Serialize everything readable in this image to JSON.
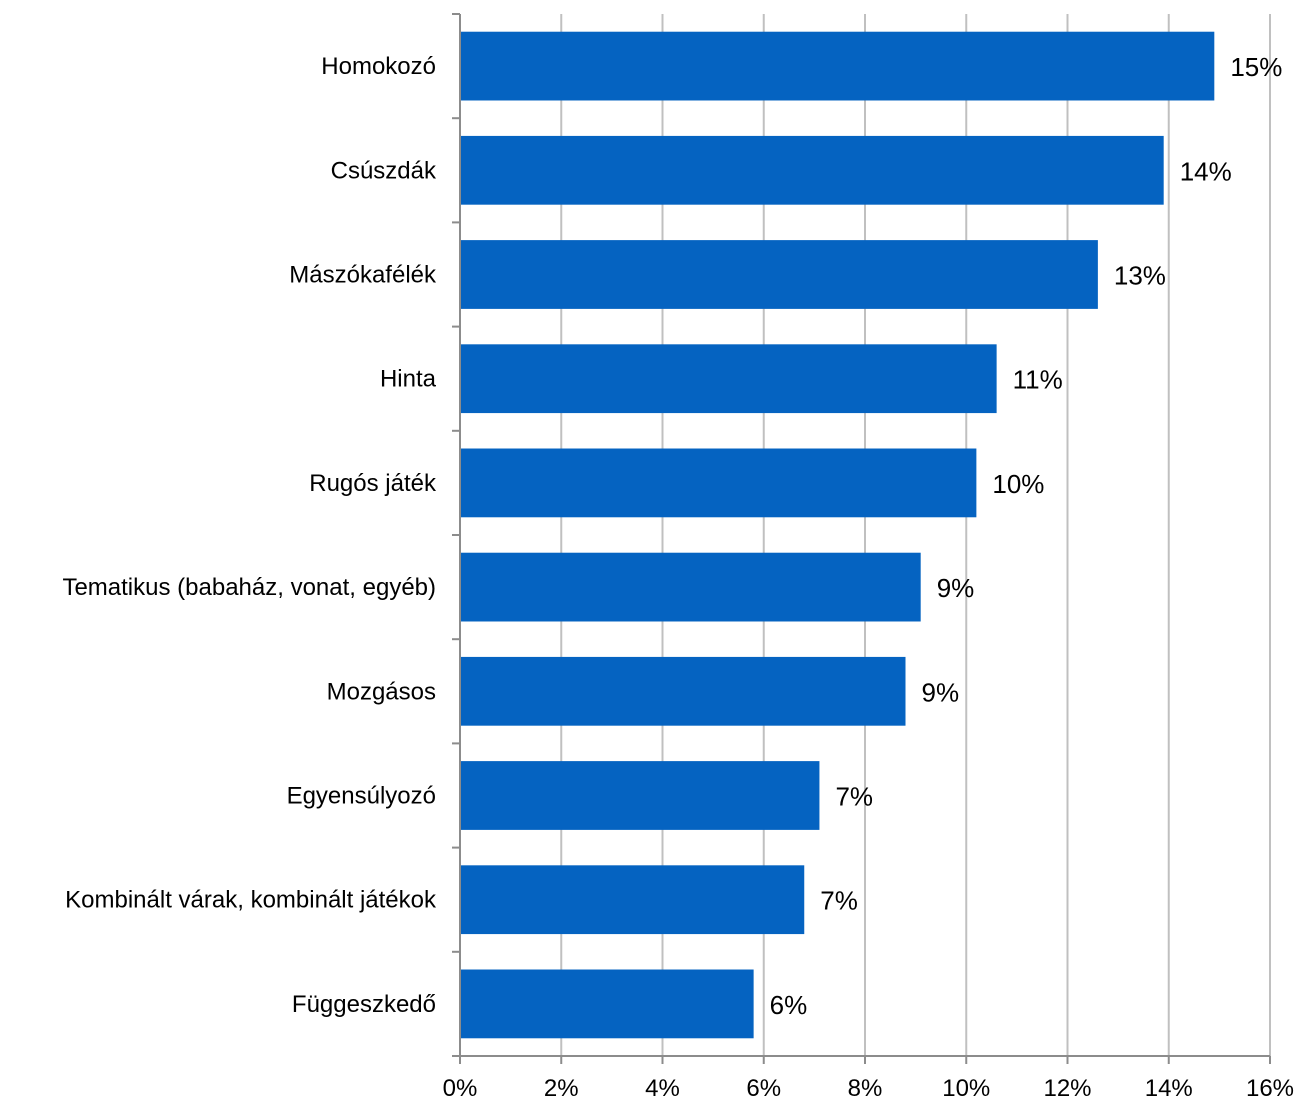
{
  "chart_data": {
    "type": "bar",
    "orientation": "horizontal",
    "categories": [
      "Homokozó",
      "Csúszdák",
      "Mászókafélék",
      "Hinta",
      "Rugós játék",
      "Tematikus (babaház, vonat, egyéb)",
      "Mozgásos",
      "Egyensúlyozó",
      "Kombinált várak, kombinált játékok",
      "Függeszkedő"
    ],
    "values": [
      14.9,
      13.9,
      12.6,
      10.6,
      10.2,
      9.1,
      8.8,
      7.1,
      6.8,
      5.8
    ],
    "data_labels": [
      "15%",
      "14%",
      "13%",
      "11%",
      "10%",
      "9%",
      "9%",
      "7%",
      "7%",
      "6%"
    ],
    "x_ticks": [
      "0%",
      "2%",
      "4%",
      "6%",
      "8%",
      "10%",
      "12%",
      "14%",
      "16%"
    ],
    "xlim": [
      0,
      16
    ],
    "title": "",
    "xlabel": "",
    "ylabel": "",
    "grid": "vertical",
    "legend": "none",
    "bar_color": "#0563C1"
  }
}
